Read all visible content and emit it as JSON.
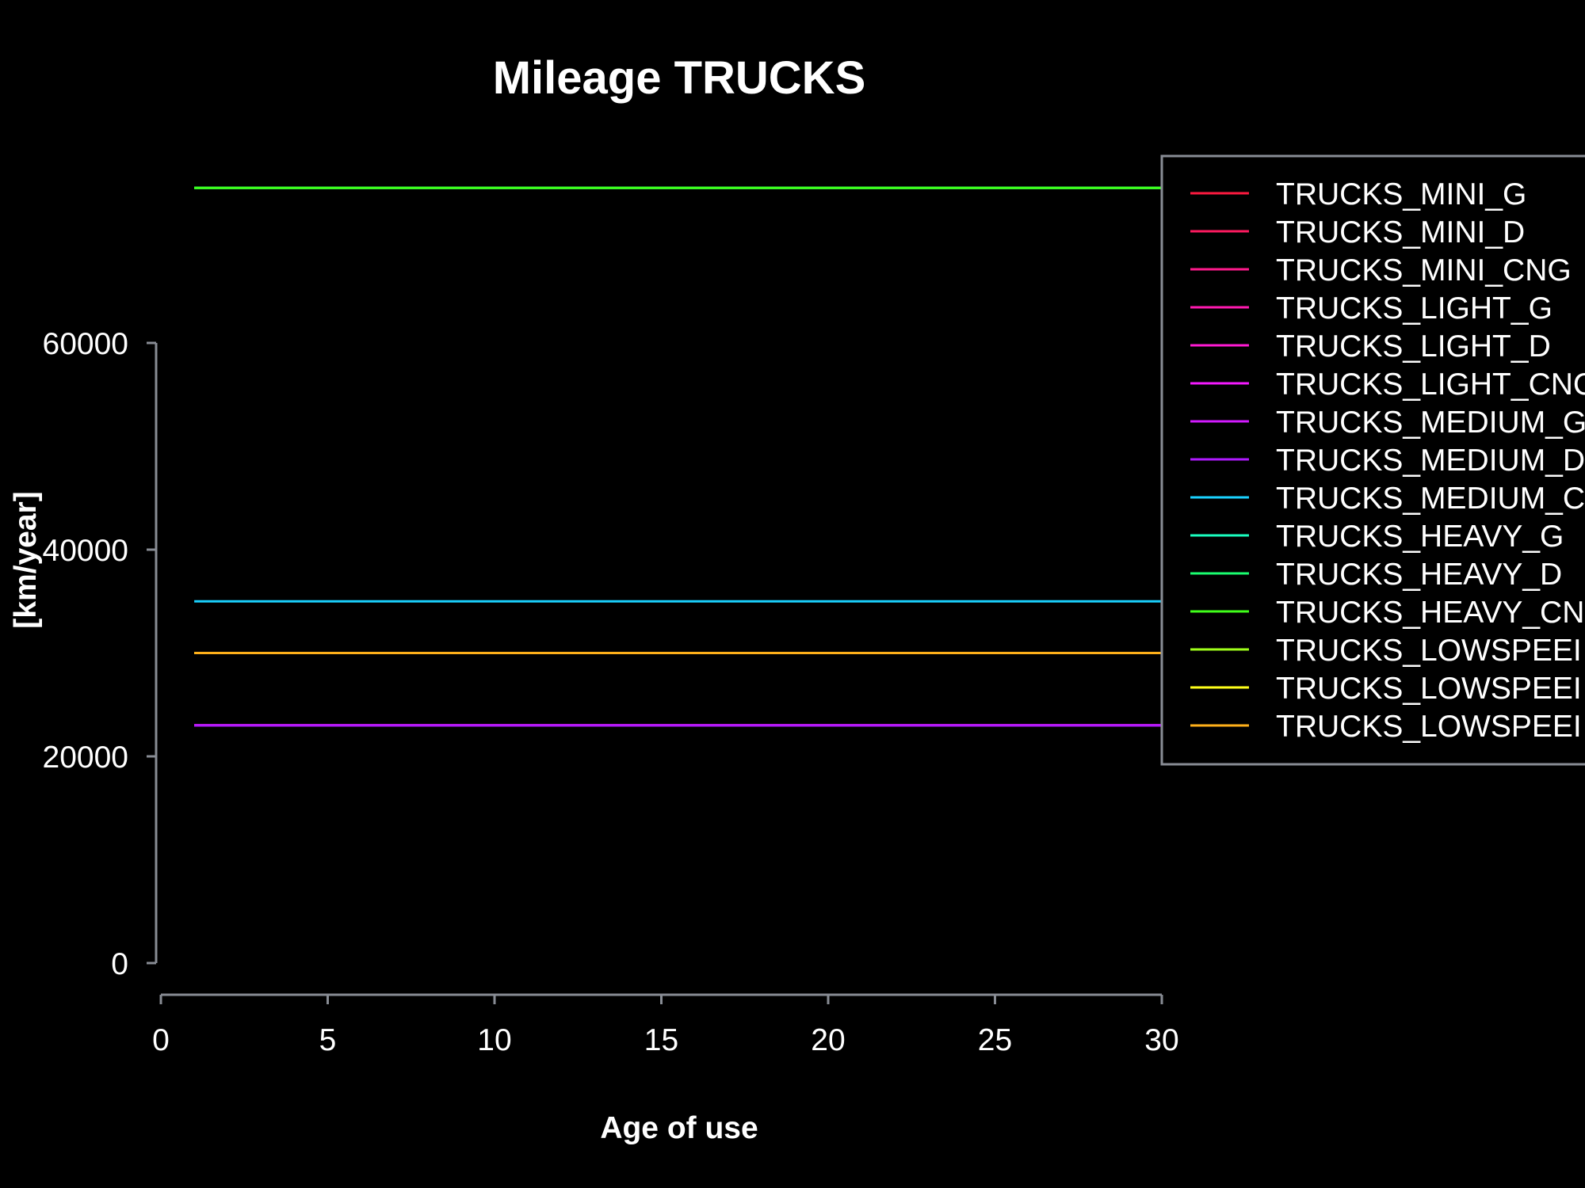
{
  "chart_data": {
    "type": "line",
    "title": "Mileage TRUCKS",
    "xlabel": "Age of use",
    "ylabel": "[km/year]",
    "xlim": [
      0,
      30
    ],
    "ylim": [
      0,
      60000
    ],
    "x_ticks": [
      0,
      5,
      10,
      15,
      20,
      25,
      30
    ],
    "y_ticks": [
      0,
      20000,
      40000,
      60000
    ],
    "x_tick_labels": [
      "0",
      "5",
      "10",
      "15",
      "20",
      "25",
      "30"
    ],
    "y_tick_labels": [
      "0",
      "20000",
      "40000",
      "60000"
    ],
    "x_range": [
      1,
      30
    ],
    "grid": false,
    "legend_position": "top-right",
    "background": "#000000",
    "series": [
      {
        "name": "TRUCKS_MINI_G",
        "label": "TRUCKS_MINI_G",
        "color": "#ff1a40",
        "value": 23000
      },
      {
        "name": "TRUCKS_MINI_D",
        "label": "TRUCKS_MINI_D",
        "color": "#ff1a60",
        "value": 23000
      },
      {
        "name": "TRUCKS_MINI_CNG",
        "label": "TRUCKS_MINI_CNG",
        "color": "#ff1a8c",
        "value": 23000
      },
      {
        "name": "TRUCKS_LIGHT_G",
        "label": "TRUCKS_LIGHT_G",
        "color": "#ff1ab0",
        "value": 23000
      },
      {
        "name": "TRUCKS_LIGHT_D",
        "label": "TRUCKS_LIGHT_D",
        "color": "#ff1ad2",
        "value": 23000
      },
      {
        "name": "TRUCKS_LIGHT_CNG",
        "label": "TRUCKS_LIGHT_CNC",
        "color": "#f51aff",
        "value": 23000
      },
      {
        "name": "TRUCKS_MEDIUM_G",
        "label": "TRUCKS_MEDIUM_G",
        "color": "#d21aff",
        "value": 23000
      },
      {
        "name": "TRUCKS_MEDIUM_D",
        "label": "TRUCKS_MEDIUM_D",
        "color": "#b01aff",
        "value": 23000
      },
      {
        "name": "TRUCKS_MEDIUM_CNG",
        "label": "TRUCKS_MEDIUM_C",
        "color": "#1ad2ff",
        "value": 35000
      },
      {
        "name": "TRUCKS_HEAVY_G",
        "label": "TRUCKS_HEAVY_G",
        "color": "#1affc0",
        "value": 75000
      },
      {
        "name": "TRUCKS_HEAVY_D",
        "label": "TRUCKS_HEAVY_D",
        "color": "#1aff70",
        "value": 75000
      },
      {
        "name": "TRUCKS_HEAVY_CNG",
        "label": "TRUCKS_HEAVY_CN",
        "color": "#40ff1a",
        "value": 75000
      },
      {
        "name": "TRUCKS_LOWSPEED_G",
        "label": "TRUCKS_LOWSPEEI",
        "color": "#a0ff1a",
        "value": 30000
      },
      {
        "name": "TRUCKS_LOWSPEED_D",
        "label": "TRUCKS_LOWSPEEI",
        "color": "#ffff1a",
        "value": 30000
      },
      {
        "name": "TRUCKS_LOWSPEED_CNG",
        "label": "TRUCKS_LOWSPEEI",
        "color": "#ffb01a",
        "value": 30000
      }
    ]
  }
}
